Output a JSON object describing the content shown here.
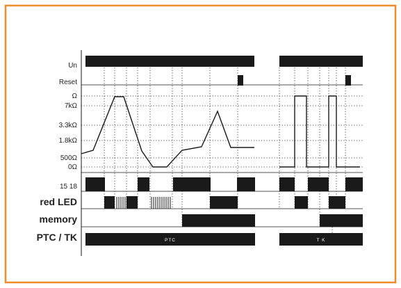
{
  "colors": {
    "frame": "#F08C2A",
    "ink": "#1a1a1a",
    "text": "#222222"
  },
  "rows": {
    "un": {
      "label": "Un"
    },
    "reset": {
      "label": "Reset"
    },
    "relay": {
      "label": "15 18"
    },
    "red_led": {
      "label": "red LED"
    },
    "memory": {
      "label": "memory"
    },
    "ptc_tk": {
      "label": "PTC / TK",
      "ptc_text": "PTC",
      "tk_text": "T K"
    }
  },
  "resistance_axis": {
    "labels": [
      "Ω",
      "7kΩ",
      "3.3kΩ",
      "1.8kΩ",
      "500Ω",
      "0Ω"
    ]
  }
}
